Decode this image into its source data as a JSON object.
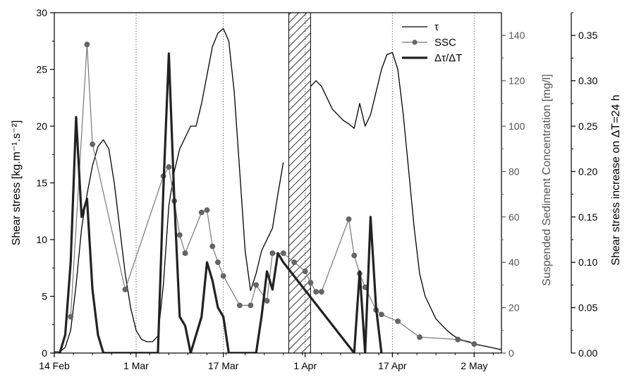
{
  "chart_data": {
    "type": "line",
    "title": "",
    "x_axis": {
      "type": "date",
      "range": [
        "2014-02-14",
        "2014-05-07"
      ],
      "tick_labels": [
        "14 Feb",
        "1 Mar",
        "17 Mar",
        "1 Apr",
        "17 Apr",
        "2 May"
      ],
      "tick_dates": [
        "2014-02-14",
        "2014-03-01",
        "2014-03-17",
        "2014-04-01",
        "2014-04-17",
        "2014-05-02"
      ],
      "vertical_dotted_lines_at": [
        "2014-03-01",
        "2014-03-17",
        "2014-04-01",
        "2014-04-17",
        "2014-05-02"
      ]
    },
    "y_axis_left": {
      "label": "Shear stress [kg.m⁻¹.s⁻²]",
      "range": [
        0,
        30
      ],
      "ticks": [
        0,
        5,
        10,
        15,
        20,
        25,
        30
      ],
      "tick_labels": [
        "0",
        "5",
        "10",
        "15",
        "20",
        "25",
        "30"
      ],
      "color": "#000000"
    },
    "y_axis_right1": {
      "label": "Suspended Sediment Concentration [mg/l]",
      "range": [
        0,
        150
      ],
      "ticks": [
        0,
        20,
        40,
        60,
        80,
        100,
        120,
        140
      ],
      "tick_labels": [
        "0",
        "20",
        "40",
        "60",
        "80",
        "100",
        "120",
        "140"
      ],
      "color": "#555555"
    },
    "y_axis_right2": {
      "label": "Shear stress increase on ΔT=24 h",
      "range": [
        0,
        0.375
      ],
      "ticks": [
        0,
        0.05,
        0.1,
        0.15,
        0.2,
        0.25,
        0.3,
        0.35
      ],
      "tick_labels": [
        "0.00",
        "0.05",
        "0.10",
        "0.15",
        "0.20",
        "0.25",
        "0.30",
        "0.35"
      ],
      "color": "#000000"
    },
    "hatched_region": {
      "start": "2014-03-29",
      "end": "2014-04-02"
    },
    "legend": {
      "position": "top-right",
      "entries": [
        {
          "label": "τ",
          "style": "thin-line"
        },
        {
          "label": "SSC",
          "style": "gray-line-dots"
        },
        {
          "label": "Δτ/ΔT",
          "style": "thick-line"
        }
      ]
    },
    "grid": false,
    "series": [
      {
        "name": "τ",
        "axis": "left",
        "color": "#000000",
        "points": [
          [
            "2014-02-14",
            0.1
          ],
          [
            "2014-02-15",
            0.1
          ],
          [
            "2014-02-16",
            0.5
          ],
          [
            "2014-02-17",
            2
          ],
          [
            "2014-02-18",
            6
          ],
          [
            "2014-02-19",
            11
          ],
          [
            "2014-02-20",
            14
          ],
          [
            "2014-02-21",
            16.5
          ],
          [
            "2014-02-22",
            18.2
          ],
          [
            "2014-02-23",
            18.8
          ],
          [
            "2014-02-24",
            18
          ],
          [
            "2014-02-25",
            15
          ],
          [
            "2014-02-26",
            11
          ],
          [
            "2014-02-27",
            7
          ],
          [
            "2014-02-28",
            4
          ],
          [
            "2014-03-01",
            2
          ],
          [
            "2014-03-02",
            1.2
          ],
          [
            "2014-03-03",
            1
          ],
          [
            "2014-03-04",
            1
          ],
          [
            "2014-03-05",
            1.5
          ],
          [
            "2014-03-06",
            6
          ],
          [
            "2014-03-07",
            13
          ],
          [
            "2014-03-08",
            16
          ],
          [
            "2014-03-09",
            18
          ],
          [
            "2014-03-10",
            19
          ],
          [
            "2014-03-11",
            20
          ],
          [
            "2014-03-12",
            20
          ],
          [
            "2014-03-13",
            22
          ],
          [
            "2014-03-14",
            24.5
          ],
          [
            "2014-03-15",
            27
          ],
          [
            "2014-03-16",
            28.2
          ],
          [
            "2014-03-17",
            28.6
          ],
          [
            "2014-03-18",
            27.5
          ],
          [
            "2014-03-19",
            23
          ],
          [
            "2014-03-20",
            16
          ],
          [
            "2014-03-21",
            9
          ],
          [
            "2014-03-22",
            5.5
          ],
          [
            "2014-03-23",
            7
          ],
          [
            "2014-03-24",
            9
          ],
          [
            "2014-03-25",
            10
          ],
          [
            "2014-03-26",
            11
          ],
          [
            "2014-03-27",
            14
          ],
          [
            "2014-03-28",
            16.8
          ],
          [
            "2014-04-02",
            23.5
          ],
          [
            "2014-04-03",
            24
          ],
          [
            "2014-04-04",
            23.5
          ],
          [
            "2014-04-05",
            22.5
          ],
          [
            "2014-04-06",
            21.5
          ],
          [
            "2014-04-07",
            21
          ],
          [
            "2014-04-08",
            20.5
          ],
          [
            "2014-04-09",
            20.2
          ],
          [
            "2014-04-10",
            19.8
          ],
          [
            "2014-04-11",
            22
          ],
          [
            "2014-04-12",
            20
          ],
          [
            "2014-04-13",
            21
          ],
          [
            "2014-04-14",
            23
          ],
          [
            "2014-04-15",
            25
          ],
          [
            "2014-04-16",
            26.3
          ],
          [
            "2014-04-17",
            26.5
          ],
          [
            "2014-04-18",
            25
          ],
          [
            "2014-04-19",
            21
          ],
          [
            "2014-04-20",
            16
          ],
          [
            "2014-04-21",
            11
          ],
          [
            "2014-04-22",
            7
          ],
          [
            "2014-04-23",
            5
          ],
          [
            "2014-04-24",
            4
          ],
          [
            "2014-04-25",
            3
          ],
          [
            "2014-04-26",
            2.5
          ],
          [
            "2014-04-27",
            2
          ],
          [
            "2014-04-28",
            1.6
          ],
          [
            "2014-04-29",
            1.3
          ],
          [
            "2014-04-30",
            1.1
          ],
          [
            "2014-05-01",
            1
          ],
          [
            "2014-05-02",
            0.8
          ],
          [
            "2014-05-03",
            0.7
          ],
          [
            "2014-05-04",
            0.6
          ],
          [
            "2014-05-05",
            0.5
          ],
          [
            "2014-05-06",
            0.4
          ],
          [
            "2014-05-07",
            0.3
          ]
        ]
      },
      {
        "name": "SSC",
        "axis": "right1",
        "color": "#555555",
        "points": [
          [
            "2014-02-17",
            16
          ],
          [
            "2014-02-20",
            136
          ],
          [
            "2014-02-21",
            92
          ],
          [
            "2014-02-27",
            28
          ],
          [
            "2014-03-06",
            78
          ],
          [
            "2014-03-07",
            82
          ],
          [
            "2014-03-08",
            67
          ],
          [
            "2014-03-09",
            52
          ],
          [
            "2014-03-10",
            44
          ],
          [
            "2014-03-13",
            62
          ],
          [
            "2014-03-14",
            63
          ],
          [
            "2014-03-15",
            47
          ],
          [
            "2014-03-16",
            40
          ],
          [
            "2014-03-17",
            34
          ],
          [
            "2014-03-20",
            21
          ],
          [
            "2014-03-22",
            21
          ],
          [
            "2014-03-23",
            30
          ],
          [
            "2014-03-25",
            23
          ],
          [
            "2014-03-26",
            44
          ],
          [
            "2014-03-28",
            44
          ],
          [
            "2014-03-30",
            40
          ],
          [
            "2014-04-01",
            36
          ],
          [
            "2014-04-02",
            31
          ],
          [
            "2014-04-03",
            27
          ],
          [
            "2014-04-04",
            27
          ],
          [
            "2014-04-09",
            59
          ],
          [
            "2014-04-10",
            43
          ],
          [
            "2014-04-11",
            35
          ],
          [
            "2014-04-12",
            29
          ],
          [
            "2014-04-14",
            19
          ],
          [
            "2014-04-15",
            17
          ],
          [
            "2014-04-18",
            14
          ],
          [
            "2014-04-22",
            7
          ],
          [
            "2014-04-29",
            6
          ],
          [
            "2014-05-02",
            4
          ]
        ]
      },
      {
        "name": "Δτ/ΔT",
        "axis": "right2",
        "color": "#222222",
        "points": [
          [
            "2014-02-15",
            0
          ],
          [
            "2014-02-16",
            0.02
          ],
          [
            "2014-02-17",
            0.1
          ],
          [
            "2014-02-18",
            0.26
          ],
          [
            "2014-02-19",
            0.15
          ],
          [
            "2014-02-20",
            0.17
          ],
          [
            "2014-02-21",
            0.07
          ],
          [
            "2014-02-22",
            0.02
          ],
          [
            "2014-02-23",
            0
          ],
          [
            "2014-03-05",
            0
          ],
          [
            "2014-03-06",
            0.18
          ],
          [
            "2014-03-07",
            0.33
          ],
          [
            "2014-03-08",
            0.17
          ],
          [
            "2014-03-09",
            0.04
          ],
          [
            "2014-03-10",
            0.03
          ],
          [
            "2014-03-11",
            0
          ],
          [
            "2014-03-13",
            0.04
          ],
          [
            "2014-03-14",
            0.1
          ],
          [
            "2014-03-15",
            0.08
          ],
          [
            "2014-03-16",
            0.05
          ],
          [
            "2014-03-17",
            0.04
          ],
          [
            "2014-03-18",
            0
          ],
          [
            "2014-03-23",
            0
          ],
          [
            "2014-03-24",
            0.04
          ],
          [
            "2014-03-25",
            0.09
          ],
          [
            "2014-03-26",
            0.07
          ],
          [
            "2014-03-27",
            0.11
          ],
          [
            "2014-03-28",
            0.1
          ],
          [
            "2014-04-10",
            0
          ],
          [
            "2014-04-11",
            0.09
          ],
          [
            "2014-04-12",
            0
          ],
          [
            "2014-04-13",
            0.15
          ],
          [
            "2014-04-14",
            0.05
          ],
          [
            "2014-04-15",
            0
          ]
        ]
      }
    ]
  }
}
